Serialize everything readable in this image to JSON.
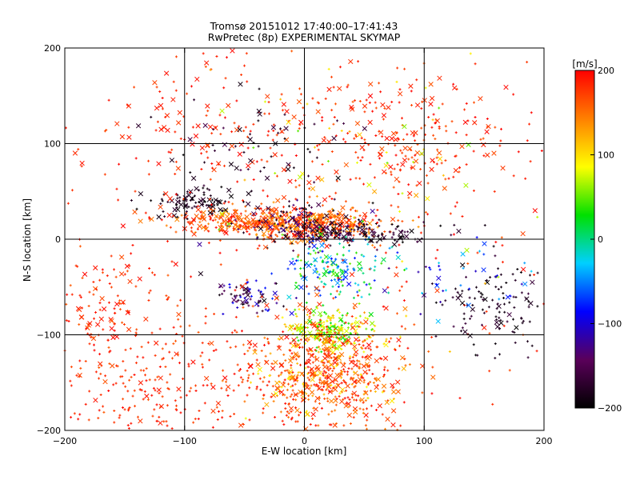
{
  "chart_data": {
    "type": "scatter",
    "title": "Tromsø 20151012 17:40:00–17:41:43",
    "subtitle": "RwPretec (8p) EXPERIMENTAL SKYMAP",
    "xlabel": "E-W location [km]",
    "ylabel": "N-S location [km]",
    "xlim": [
      -200,
      200
    ],
    "ylim": [
      -200,
      200
    ],
    "xticks": [
      -200,
      -100,
      0,
      100,
      200
    ],
    "yticks": [
      -200,
      -100,
      0,
      100,
      200
    ],
    "grid": true,
    "colorbar": {
      "label": "[m/s]",
      "range": [
        -200,
        200
      ],
      "ticks": [
        -200,
        -100,
        0,
        100,
        200
      ],
      "colors": [
        "#000000",
        "#5a005a",
        "#0000ff",
        "#00d0ff",
        "#00e000",
        "#ffff00",
        "#ff8000",
        "#ff0000"
      ]
    },
    "markers": [
      "plus",
      "cross"
    ],
    "clusters": [
      {
        "cx": 0,
        "cy": 15,
        "sx": 35,
        "sy": 8,
        "n": 420,
        "vmin": 120,
        "vmax": 200,
        "xfrac": 0.25
      },
      {
        "cx": -60,
        "cy": 20,
        "sx": 30,
        "sy": 8,
        "n": 160,
        "vmin": 140,
        "vmax": 200,
        "xfrac": 0.3
      },
      {
        "cx": -90,
        "cy": 40,
        "sx": 18,
        "sy": 8,
        "n": 90,
        "vmin": -200,
        "vmax": -170,
        "xfrac": 0.35
      },
      {
        "cx": 40,
        "cy": 5,
        "sx": 35,
        "sy": 6,
        "n": 140,
        "vmin": -200,
        "vmax": -150,
        "xfrac": 0.3
      },
      {
        "cx": 0,
        "cy": 15,
        "sx": 25,
        "sy": 10,
        "n": 120,
        "vmin": -200,
        "vmax": -120,
        "xfrac": 0.25
      },
      {
        "cx": 25,
        "cy": -30,
        "sx": 22,
        "sy": 18,
        "n": 180,
        "vmin": -90,
        "vmax": 60,
        "xfrac": 0.15
      },
      {
        "cx": -50,
        "cy": -62,
        "sx": 15,
        "sy": 9,
        "n": 70,
        "vmin": -200,
        "vmax": -80,
        "xfrac": 0.3
      },
      {
        "cx": 20,
        "cy": -95,
        "sx": 20,
        "sy": 10,
        "n": 220,
        "vmin": 20,
        "vmax": 120,
        "xfrac": 0.2
      },
      {
        "cx": 20,
        "cy": -140,
        "sx": 32,
        "sy": 30,
        "n": 520,
        "vmin": 140,
        "vmax": 200,
        "xfrac": 0.25
      },
      {
        "cx": 20,
        "cy": -140,
        "sx": 30,
        "sy": 28,
        "n": 110,
        "vmin": 80,
        "vmax": 140,
        "xfrac": 0.25
      },
      {
        "cx": -120,
        "cy": -150,
        "sx": 50,
        "sy": 35,
        "n": 260,
        "vmin": 160,
        "vmax": 200,
        "xfrac": 0.12
      },
      {
        "cx": 80,
        "cy": 100,
        "sx": 45,
        "sy": 35,
        "n": 240,
        "vmin": 160,
        "vmax": 200,
        "xfrac": 0.3
      },
      {
        "cx": -80,
        "cy": 110,
        "sx": 50,
        "sy": 45,
        "n": 140,
        "vmin": 170,
        "vmax": 200,
        "xfrac": 0.3
      },
      {
        "cx": 0,
        "cy": 0,
        "sx": 120,
        "sy": 110,
        "n": 300,
        "vmin": 160,
        "vmax": 200,
        "xfrac": 0.15
      },
      {
        "cx": 160,
        "cy": -70,
        "sx": 25,
        "sy": 25,
        "n": 120,
        "vmin": -200,
        "vmax": -160,
        "xfrac": 0.2
      },
      {
        "cx": -170,
        "cy": -70,
        "sx": 20,
        "sy": 25,
        "n": 100,
        "vmin": 160,
        "vmax": 200,
        "xfrac": 0.3
      },
      {
        "cx": 130,
        "cy": -40,
        "sx": 30,
        "sy": 20,
        "n": 40,
        "vmin": -140,
        "vmax": -20,
        "xfrac": 0.4
      },
      {
        "cx": -40,
        "cy": 100,
        "sx": 40,
        "sy": 30,
        "n": 60,
        "vmin": -200,
        "vmax": -150,
        "xfrac": 0.3
      },
      {
        "cx": 50,
        "cy": 70,
        "sx": 70,
        "sy": 60,
        "n": 60,
        "vmin": 40,
        "vmax": 130,
        "xfrac": 0.3
      }
    ]
  }
}
